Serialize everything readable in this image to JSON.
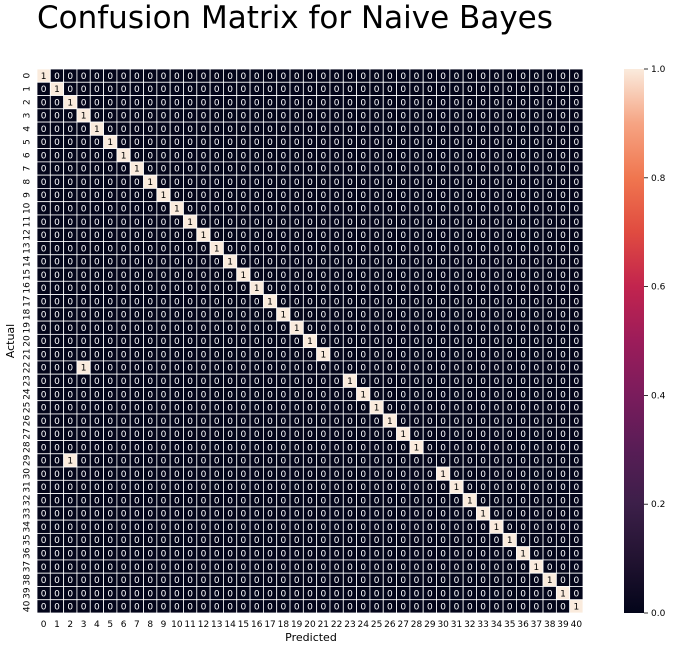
{
  "chart_data": {
    "type": "heatmap",
    "title": "Confusion Matrix for Naive Bayes",
    "xlabel": "Predicted",
    "ylabel": "Actual",
    "labels": [
      "0",
      "1",
      "2",
      "3",
      "4",
      "5",
      "6",
      "7",
      "8",
      "9",
      "10",
      "11",
      "12",
      "13",
      "14",
      "15",
      "16",
      "17",
      "18",
      "19",
      "20",
      "21",
      "22",
      "23",
      "24",
      "25",
      "26",
      "27",
      "28",
      "29",
      "30",
      "31",
      "32",
      "33",
      "34",
      "35",
      "36",
      "37",
      "38",
      "39",
      "40"
    ],
    "size": 41,
    "diagonal_value": 1,
    "off_diagonal_default": 0,
    "row_overrides": [
      {
        "row": 22,
        "col": 3,
        "value": 1
      },
      {
        "row": 29,
        "col": 2,
        "value": 1
      }
    ],
    "colorbar": {
      "min": 0,
      "max": 1,
      "ticks": [
        "0.0",
        "0.2",
        "0.4",
        "0.6",
        "0.8",
        "1.0"
      ],
      "colormap": "rocket",
      "low_color": "#03051a",
      "high_color": "#faebdd"
    },
    "annotated": true,
    "grid_line_color": "#ffffff"
  }
}
